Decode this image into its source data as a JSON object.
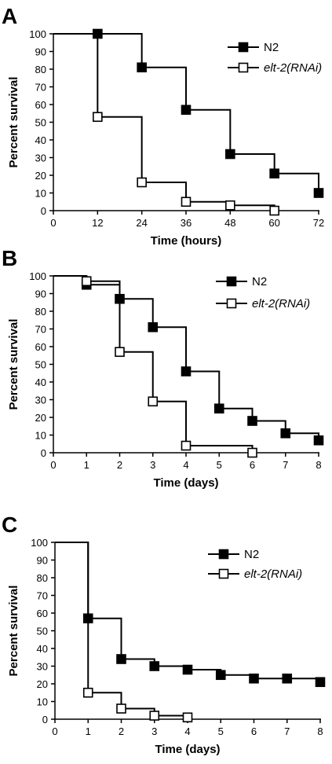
{
  "chart_data": [
    {
      "type": "line",
      "panel": "A",
      "xlabel": "Time (hours)",
      "ylabel": "Percent survival",
      "xlim": [
        0,
        72
      ],
      "ylim": [
        0,
        100
      ],
      "xticks": [
        0,
        12,
        24,
        36,
        48,
        60,
        72
      ],
      "yticks": [
        0,
        10,
        20,
        30,
        40,
        50,
        60,
        70,
        80,
        90,
        100
      ],
      "grid": false,
      "legend": "top-right",
      "series": [
        {
          "name": "N2",
          "marker": "filled-square",
          "x": [
            0,
            12,
            24,
            36,
            48,
            60,
            72
          ],
          "y": [
            100,
            100,
            81,
            57,
            32,
            21,
            10
          ]
        },
        {
          "name": "elt-2(RNAi)",
          "marker": "open-square",
          "x": [
            0,
            12,
            24,
            36,
            48,
            60
          ],
          "y": [
            100,
            53,
            16,
            5,
            3,
            0
          ]
        }
      ]
    },
    {
      "type": "line",
      "panel": "B",
      "xlabel": "Time (days)",
      "ylabel": "Percent survival",
      "xlim": [
        0,
        8
      ],
      "ylim": [
        0,
        100
      ],
      "xticks": [
        0,
        1,
        2,
        3,
        4,
        5,
        6,
        7,
        8
      ],
      "yticks": [
        0,
        10,
        20,
        30,
        40,
        50,
        60,
        70,
        80,
        90,
        100
      ],
      "grid": false,
      "legend": "top-right",
      "series": [
        {
          "name": "N2",
          "marker": "filled-square",
          "x": [
            0,
            1,
            2,
            3,
            4,
            5,
            6,
            7,
            8
          ],
          "y": [
            100,
            95,
            87,
            71,
            46,
            25,
            18,
            11,
            7
          ]
        },
        {
          "name": "elt-2(RNAi)",
          "marker": "open-square",
          "x": [
            0,
            1,
            2,
            3,
            4,
            6
          ],
          "y": [
            100,
            97,
            57,
            29,
            4,
            0
          ]
        }
      ]
    },
    {
      "type": "line",
      "panel": "C",
      "xlabel": "Time (days)",
      "ylabel": "Percent survival",
      "xlim": [
        0,
        8
      ],
      "ylim": [
        0,
        100
      ],
      "xticks": [
        0,
        1,
        2,
        3,
        4,
        5,
        6,
        7,
        8
      ],
      "yticks": [
        0,
        10,
        20,
        30,
        40,
        50,
        60,
        70,
        80,
        90,
        100
      ],
      "grid": false,
      "legend": "top-right",
      "series": [
        {
          "name": "N2",
          "marker": "filled-square",
          "x": [
            0,
            1,
            2,
            3,
            4,
            5,
            6,
            7,
            8
          ],
          "y": [
            100,
            57,
            34,
            30,
            28,
            25,
            23,
            23,
            21
          ]
        },
        {
          "name": "elt-2(RNAi)",
          "marker": "open-square",
          "x": [
            0,
            1,
            2,
            3,
            4
          ],
          "y": [
            100,
            15,
            6,
            2,
            1
          ]
        }
      ]
    }
  ]
}
